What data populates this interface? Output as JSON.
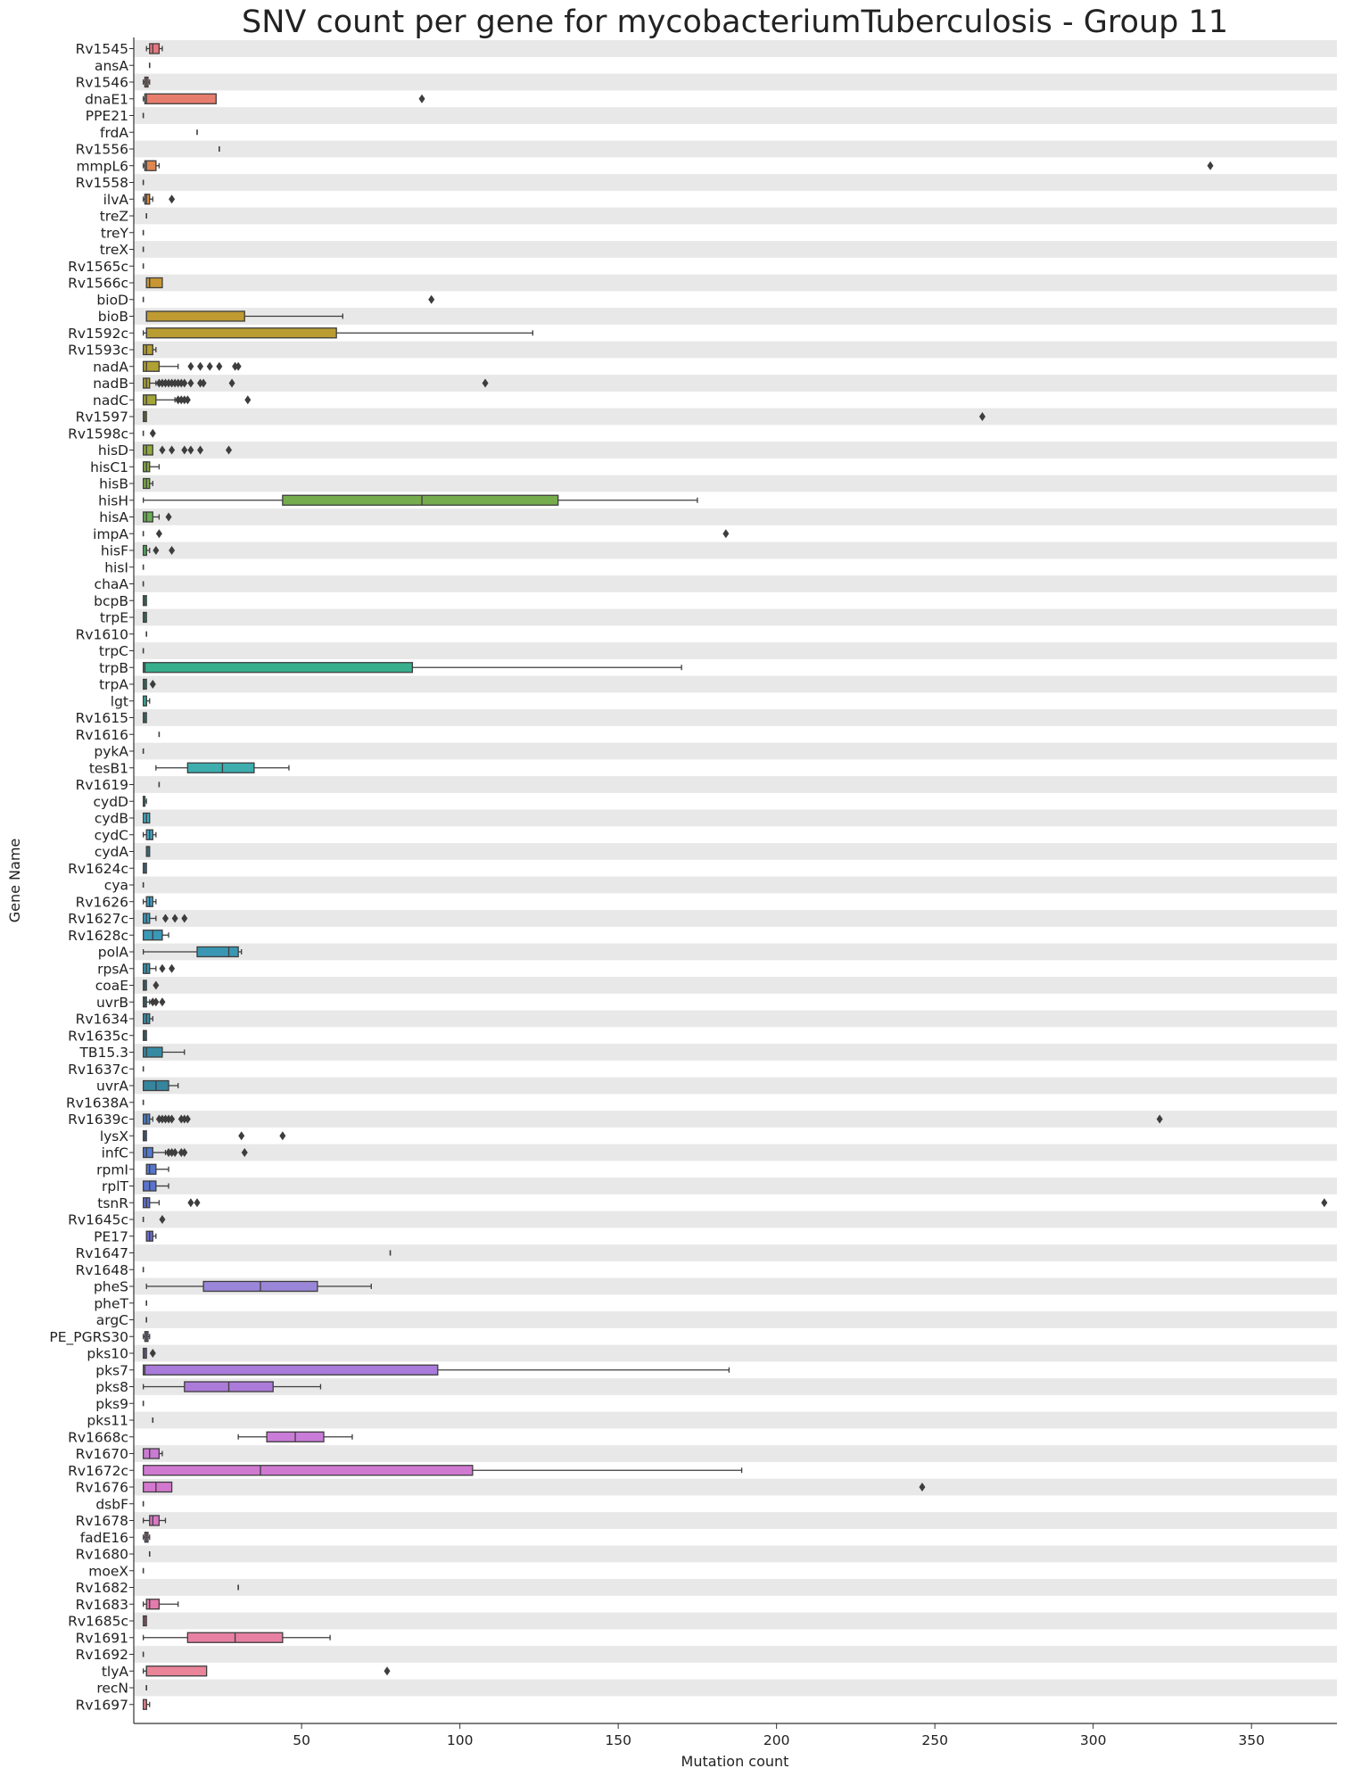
{
  "chart_data": {
    "type": "boxplot",
    "orientation": "horizontal",
    "title": "SNV count per gene for mycobacteriumTuberculosis - Group 11",
    "xlabel": "Mutation count",
    "ylabel": "Gene Name",
    "xlim": [
      -3,
      377
    ],
    "xticks": [
      50,
      100,
      150,
      200,
      250,
      300,
      350
    ],
    "grid": "alternating-row-bands",
    "band_color": "#e8e8e8",
    "box_stroke": "#3d3d3d",
    "categories": [
      "Rv1545",
      "ansA",
      "Rv1546",
      "dnaE1",
      "PPE21",
      "frdA",
      "Rv1556",
      "mmpL6",
      "Rv1558",
      "ilvA",
      "treZ",
      "treY",
      "treX",
      "Rv1565c",
      "Rv1566c",
      "bioD",
      "bioB",
      "Rv1592c",
      "Rv1593c",
      "nadA",
      "nadB",
      "nadC",
      "Rv1597",
      "Rv1598c",
      "hisD",
      "hisC1",
      "hisB",
      "hisH",
      "hisA",
      "impA",
      "hisF",
      "hisI",
      "chaA",
      "bcpB",
      "trpE",
      "Rv1610",
      "trpC",
      "trpB",
      "trpA",
      "lgt",
      "Rv1615",
      "Rv1616",
      "pykA",
      "tesB1",
      "Rv1619",
      "cydD",
      "cydB",
      "cydC",
      "cydA",
      "Rv1624c",
      "cya",
      "Rv1626",
      "Rv1627c",
      "Rv1628c",
      "polA",
      "rpsA",
      "coaE",
      "uvrB",
      "Rv1634",
      "Rv1635c",
      "TB15.3",
      "Rv1637c",
      "uvrA",
      "Rv1638A",
      "Rv1639c",
      "lysX",
      "infC",
      "rpmI",
      "rplT",
      "tsnR",
      "Rv1645c",
      "PE17",
      "Rv1647",
      "Rv1648",
      "pheS",
      "pheT",
      "argC",
      "PE_PGRS30",
      "pks10",
      "pks7",
      "pks8",
      "pks9",
      "pks11",
      "Rv1668c",
      "Rv1670",
      "Rv1672c",
      "Rv1676",
      "dsbF",
      "Rv1678",
      "fadE16",
      "Rv1680",
      "moeX",
      "Rv1682",
      "Rv1683",
      "Rv1685c",
      "Rv1691",
      "Rv1692",
      "tlyA",
      "recN",
      "Rv1697"
    ],
    "boxes": [
      {
        "min": 1,
        "q1": 2,
        "median": 3,
        "q3": 5,
        "max": 6,
        "outliers": [],
        "color": "#e8787f"
      },
      {
        "min": 2,
        "q1": 2,
        "median": 2,
        "q3": 2,
        "max": 2,
        "outliers": [],
        "color": "#e8797a"
      },
      {
        "min": 0,
        "q1": 0.5,
        "median": 1,
        "q3": 1.5,
        "max": 2,
        "outliers": [],
        "color": "#e87b73"
      },
      {
        "min": 0,
        "q1": 0.5,
        "median": 1,
        "q3": 23,
        "max": 23,
        "outliers": [
          88
        ],
        "color": "#e77d6c"
      },
      {
        "min": 0,
        "q1": 0,
        "median": 0,
        "q3": 0,
        "max": 0,
        "outliers": [],
        "color": "#e67f66"
      },
      {
        "min": 17,
        "q1": 17,
        "median": 17,
        "q3": 17,
        "max": 17,
        "outliers": [],
        "color": "#e4815f"
      },
      {
        "min": 24,
        "q1": 24,
        "median": 24,
        "q3": 24,
        "max": 24,
        "outliers": [],
        "color": "#e28458"
      },
      {
        "min": 0,
        "q1": 0.5,
        "median": 1,
        "q3": 4,
        "max": 5,
        "outliers": [
          337
        ],
        "color": "#df8651"
      },
      {
        "min": 0,
        "q1": 0,
        "median": 0,
        "q3": 0,
        "max": 0,
        "outliers": [],
        "color": "#dc894b"
      },
      {
        "min": 0,
        "q1": 0.5,
        "median": 1,
        "q3": 2,
        "max": 3,
        "outliers": [
          9
        ],
        "color": "#d98c45"
      },
      {
        "min": 1,
        "q1": 1,
        "median": 1,
        "q3": 1,
        "max": 1,
        "outliers": [],
        "color": "#d68e40"
      },
      {
        "min": 0,
        "q1": 0,
        "median": 0,
        "q3": 0,
        "max": 0,
        "outliers": [],
        "color": "#d3913c"
      },
      {
        "min": 0,
        "q1": 0,
        "median": 0,
        "q3": 0,
        "max": 0,
        "outliers": [],
        "color": "#d09339"
      },
      {
        "min": 0,
        "q1": 0,
        "median": 0,
        "q3": 0,
        "max": 0,
        "outliers": [],
        "color": "#cc9536"
      },
      {
        "min": 1,
        "q1": 1,
        "median": 2,
        "q3": 6,
        "max": 6,
        "outliers": [],
        "color": "#c89734"
      },
      {
        "min": 0,
        "q1": 0,
        "median": 0,
        "q3": 0,
        "max": 0,
        "outliers": [
          91
        ],
        "color": "#c49933"
      },
      {
        "min": 1,
        "q1": 1,
        "median": 1,
        "q3": 32,
        "max": 63,
        "outliers": [],
        "color": "#bf9b32"
      },
      {
        "min": 0,
        "q1": 1,
        "median": 1,
        "q3": 61,
        "max": 123,
        "outliers": [],
        "color": "#ba9d32"
      },
      {
        "min": 0,
        "q1": 0,
        "median": 1,
        "q3": 3,
        "max": 4,
        "outliers": [],
        "color": "#b59f33"
      },
      {
        "min": 0,
        "q1": 0,
        "median": 1,
        "q3": 5,
        "max": 11,
        "outliers": [
          15,
          18,
          21,
          24,
          29,
          30
        ],
        "color": "#b0a134"
      },
      {
        "min": 0,
        "q1": 0,
        "median": 1,
        "q3": 2,
        "max": 4,
        "outliers": [
          5,
          6,
          7,
          8,
          9,
          10,
          11,
          12,
          13,
          15,
          18,
          19,
          28,
          108
        ],
        "color": "#aaa235"
      },
      {
        "min": 0,
        "q1": 0,
        "median": 1,
        "q3": 4,
        "max": 10,
        "outliers": [
          11,
          12,
          13,
          14,
          33
        ],
        "color": "#a4a437"
      },
      {
        "min": 0,
        "q1": 0,
        "median": 0.5,
        "q3": 1,
        "max": 1,
        "outliers": [
          265
        ],
        "color": "#9ea53a"
      },
      {
        "min": 0,
        "q1": 0,
        "median": 0,
        "q3": 0,
        "max": 0,
        "outliers": [
          3
        ],
        "color": "#97a73d"
      },
      {
        "min": 0,
        "q1": 0,
        "median": 1,
        "q3": 3,
        "max": 3,
        "outliers": [
          6,
          9,
          13,
          15,
          18,
          27
        ],
        "color": "#8fa840"
      },
      {
        "min": 0,
        "q1": 0,
        "median": 1,
        "q3": 2,
        "max": 5,
        "outliers": [],
        "color": "#87a944"
      },
      {
        "min": 0,
        "q1": 0,
        "median": 1,
        "q3": 2,
        "max": 3,
        "outliers": [],
        "color": "#7eab48"
      },
      {
        "min": 0,
        "q1": 44,
        "median": 88,
        "q3": 131,
        "max": 175,
        "outliers": [],
        "color": "#75ac4d"
      },
      {
        "min": 0,
        "q1": 0,
        "median": 1,
        "q3": 3,
        "max": 5,
        "outliers": [
          8
        ],
        "color": "#6aad52"
      },
      {
        "min": 0,
        "q1": 0,
        "median": 0,
        "q3": 0,
        "max": 0,
        "outliers": [
          5,
          184
        ],
        "color": "#5fae58"
      },
      {
        "min": 0,
        "q1": 0,
        "median": 1,
        "q3": 1,
        "max": 2,
        "outliers": [
          4,
          9
        ],
        "color": "#52af5e"
      },
      {
        "min": 0,
        "q1": 0,
        "median": 0,
        "q3": 0,
        "max": 0,
        "outliers": [],
        "color": "#45b064"
      },
      {
        "min": 0,
        "q1": 0,
        "median": 0,
        "q3": 0,
        "max": 0,
        "outliers": [],
        "color": "#3bb06b"
      },
      {
        "min": 0,
        "q1": 0,
        "median": 0.5,
        "q3": 1,
        "max": 1,
        "outliers": [],
        "color": "#36b072"
      },
      {
        "min": 0,
        "q1": 0,
        "median": 0.5,
        "q3": 1,
        "max": 1,
        "outliers": [],
        "color": "#35b079"
      },
      {
        "min": 1,
        "q1": 1,
        "median": 1,
        "q3": 1,
        "max": 1,
        "outliers": [],
        "color": "#35b080"
      },
      {
        "min": 0,
        "q1": 0,
        "median": 0,
        "q3": 0,
        "max": 0,
        "outliers": [],
        "color": "#36af87"
      },
      {
        "min": 0,
        "q1": 0,
        "median": 0.5,
        "q3": 85,
        "max": 170,
        "outliers": [],
        "color": "#37af8d"
      },
      {
        "min": 0,
        "q1": 0,
        "median": 0.5,
        "q3": 1,
        "max": 1,
        "outliers": [
          3
        ],
        "color": "#38af93"
      },
      {
        "min": 0,
        "q1": 0,
        "median": 1,
        "q3": 1,
        "max": 2,
        "outliers": [],
        "color": "#39ae99"
      },
      {
        "min": 0,
        "q1": 0,
        "median": 0.5,
        "q3": 1,
        "max": 1,
        "outliers": [],
        "color": "#3aae9e"
      },
      {
        "min": 5,
        "q1": 5,
        "median": 5,
        "q3": 5,
        "max": 5,
        "outliers": [],
        "color": "#3baea3"
      },
      {
        "min": 0,
        "q1": 0,
        "median": 0,
        "q3": 0,
        "max": 0,
        "outliers": [],
        "color": "#3cada8"
      },
      {
        "min": 4,
        "q1": 14,
        "median": 25,
        "q3": 35,
        "max": 46,
        "outliers": [],
        "color": "#3dadae"
      },
      {
        "min": 5,
        "q1": 5,
        "median": 5,
        "q3": 5,
        "max": 5,
        "outliers": [],
        "color": "#3eacb3"
      },
      {
        "min": 0,
        "q1": 0,
        "median": 0.5,
        "q3": 0.5,
        "max": 1,
        "outliers": [],
        "color": "#3fabb9"
      },
      {
        "min": 0,
        "q1": 0,
        "median": 1,
        "q3": 2,
        "max": 2,
        "outliers": [],
        "color": "#41aabf"
      },
      {
        "min": 0,
        "q1": 1,
        "median": 2,
        "q3": 3,
        "max": 4,
        "outliers": [],
        "color": "#42a9c5"
      },
      {
        "min": 1,
        "q1": 1,
        "median": 1.5,
        "q3": 2,
        "max": 2,
        "outliers": [],
        "color": "#44a8cc"
      },
      {
        "min": 0,
        "q1": 0,
        "median": 0.5,
        "q3": 1,
        "max": 1,
        "outliers": [],
        "color": "#46a6d2"
      },
      {
        "min": 0,
        "q1": 0,
        "median": 0,
        "q3": 0,
        "max": 0,
        "outliers": [],
        "color": "#49a4d9"
      },
      {
        "min": 0,
        "q1": 1,
        "median": 2,
        "q3": 3,
        "max": 4,
        "outliers": [],
        "color": "#3f9fc4"
      },
      {
        "min": 0,
        "q1": 0,
        "median": 1,
        "q3": 2,
        "max": 4,
        "outliers": [
          7,
          10,
          13
        ],
        "color": "#3d9cbe"
      },
      {
        "min": 0,
        "q1": 0,
        "median": 3,
        "q3": 6,
        "max": 8,
        "outliers": [],
        "color": "#3b99b8"
      },
      {
        "min": 0,
        "q1": 17,
        "median": 27,
        "q3": 30,
        "max": 31,
        "outliers": [],
        "color": "#3a97b3"
      },
      {
        "min": 0,
        "q1": 0,
        "median": 1,
        "q3": 2,
        "max": 4,
        "outliers": [
          6,
          9
        ],
        "color": "#3995b0"
      },
      {
        "min": 0,
        "q1": 0,
        "median": 0.5,
        "q3": 1,
        "max": 1,
        "outliers": [
          4
        ],
        "color": "#3894ad"
      },
      {
        "min": 0,
        "q1": 0,
        "median": 0.5,
        "q3": 1,
        "max": 2,
        "outliers": [
          3,
          4,
          6
        ],
        "color": "#3792ab"
      },
      {
        "min": 0,
        "q1": 0,
        "median": 1,
        "q3": 2,
        "max": 3,
        "outliers": [],
        "color": "#3790a9"
      },
      {
        "min": 0,
        "q1": 0,
        "median": 0.5,
        "q3": 1,
        "max": 1,
        "outliers": [],
        "color": "#378ea6"
      },
      {
        "min": 0,
        "q1": 0,
        "median": 1,
        "q3": 6,
        "max": 13,
        "outliers": [],
        "color": "#368ba3"
      },
      {
        "min": 0,
        "q1": 0,
        "median": 0,
        "q3": 0,
        "max": 0,
        "outliers": [],
        "color": "#3688a0"
      },
      {
        "min": 0,
        "q1": 0,
        "median": 4,
        "q3": 8,
        "max": 11,
        "outliers": [],
        "color": "#36859e"
      },
      {
        "min": 0,
        "q1": 0,
        "median": 0,
        "q3": 0,
        "max": 0,
        "outliers": [],
        "color": "#4682c7"
      },
      {
        "min": 0,
        "q1": 0,
        "median": 1,
        "q3": 2,
        "max": 3,
        "outliers": [
          5,
          6,
          7,
          8,
          9,
          12,
          13,
          14,
          321
        ],
        "color": "#4a7fc9"
      },
      {
        "min": 0,
        "q1": 0,
        "median": 0.5,
        "q3": 1,
        "max": 1,
        "outliers": [
          31,
          44
        ],
        "color": "#4e7cca"
      },
      {
        "min": 0,
        "q1": 0,
        "median": 1,
        "q3": 3,
        "max": 7,
        "outliers": [
          8,
          9,
          10,
          12,
          13,
          32
        ],
        "color": "#5279cc"
      },
      {
        "min": 1,
        "q1": 1,
        "median": 2,
        "q3": 4,
        "max": 8,
        "outliers": [],
        "color": "#5676cd"
      },
      {
        "min": 0,
        "q1": 0,
        "median": 2,
        "q3": 4,
        "max": 8,
        "outliers": [],
        "color": "#5a73ce"
      },
      {
        "min": 0,
        "q1": 0,
        "median": 1,
        "q3": 2,
        "max": 5,
        "outliers": [
          15,
          17,
          373
        ],
        "color": "#6071cf"
      },
      {
        "min": 0,
        "q1": 0,
        "median": 0,
        "q3": 0,
        "max": 0,
        "outliers": [
          6
        ],
        "color": "#666fd0"
      },
      {
        "min": 1,
        "q1": 1,
        "median": 2,
        "q3": 3,
        "max": 4,
        "outliers": [],
        "color": "#6d6dd1"
      },
      {
        "min": 78,
        "q1": 78,
        "median": 78,
        "q3": 78,
        "max": 78,
        "outliers": [],
        "color": "#7a6fd2"
      },
      {
        "min": 0,
        "q1": 0,
        "median": 0,
        "q3": 0,
        "max": 0,
        "outliers": [],
        "color": "#8671d3"
      },
      {
        "min": 1,
        "q1": 19,
        "median": 37,
        "q3": 55,
        "max": 72,
        "outliers": [],
        "color": "#9a86d8"
      },
      {
        "min": 1,
        "q1": 1,
        "median": 1,
        "q3": 1,
        "max": 1,
        "outliers": [],
        "color": "#9b82d9"
      },
      {
        "min": 1,
        "q1": 1,
        "median": 1,
        "q3": 1,
        "max": 1,
        "outliers": [],
        "color": "#9c80d9"
      },
      {
        "min": 0,
        "q1": 0.5,
        "median": 1,
        "q3": 1.5,
        "max": 2,
        "outliers": [],
        "color": "#a07ed9"
      },
      {
        "min": 0,
        "q1": 0,
        "median": 0.5,
        "q3": 1,
        "max": 1,
        "outliers": [
          3
        ],
        "color": "#a47cda"
      },
      {
        "min": 0,
        "q1": 0,
        "median": 0.5,
        "q3": 93,
        "max": 185,
        "outliers": [],
        "color": "#a87ada"
      },
      {
        "min": 0,
        "q1": 13,
        "median": 27,
        "q3": 41,
        "max": 56,
        "outliers": [],
        "color": "#ac7ad9"
      },
      {
        "min": 0,
        "q1": 0,
        "median": 0,
        "q3": 0,
        "max": 0,
        "outliers": [],
        "color": "#b07ad8"
      },
      {
        "min": 3,
        "q1": 3,
        "median": 3,
        "q3": 3,
        "max": 3,
        "outliers": [],
        "color": "#b57ad6"
      },
      {
        "min": 30,
        "q1": 39,
        "median": 48,
        "q3": 57,
        "max": 66,
        "outliers": [],
        "color": "#c97cd7"
      },
      {
        "min": 0,
        "q1": 0,
        "median": 2,
        "q3": 5,
        "max": 6,
        "outliers": [],
        "color": "#cb7bd4"
      },
      {
        "min": 0,
        "q1": 0,
        "median": 37,
        "q3": 104,
        "max": 189,
        "outliers": [],
        "color": "#d079d1"
      },
      {
        "min": 0,
        "q1": 0,
        "median": 4,
        "q3": 9,
        "max": 9,
        "outliers": [
          246
        ],
        "color": "#d378ce"
      },
      {
        "min": 0,
        "q1": 0,
        "median": 0,
        "q3": 0,
        "max": 0,
        "outliers": [],
        "color": "#d777cb"
      },
      {
        "min": 0,
        "q1": 2,
        "median": 3,
        "q3": 5,
        "max": 7,
        "outliers": [],
        "color": "#da77c7"
      },
      {
        "min": 0,
        "q1": 0.5,
        "median": 1,
        "q3": 1.5,
        "max": 2,
        "outliers": [],
        "color": "#dc77c2"
      },
      {
        "min": 2,
        "q1": 2,
        "median": 2,
        "q3": 2,
        "max": 2,
        "outliers": [],
        "color": "#df78bd"
      },
      {
        "min": 0,
        "q1": 0,
        "median": 0,
        "q3": 0,
        "max": 0,
        "outliers": [],
        "color": "#e179b8"
      },
      {
        "min": 30,
        "q1": 30,
        "median": 30,
        "q3": 30,
        "max": 30,
        "outliers": [],
        "color": "#e37bb2"
      },
      {
        "min": 0,
        "q1": 1,
        "median": 2,
        "q3": 5,
        "max": 11,
        "outliers": [],
        "color": "#e47cad"
      },
      {
        "min": 0,
        "q1": 0,
        "median": 0.5,
        "q3": 1,
        "max": 1,
        "outliers": [],
        "color": "#e67ea8"
      },
      {
        "min": 0,
        "q1": 14,
        "median": 29,
        "q3": 44,
        "max": 59,
        "outliers": [],
        "color": "#e780a3"
      },
      {
        "min": 0,
        "q1": 0,
        "median": 0,
        "q3": 0,
        "max": 0,
        "outliers": [],
        "color": "#e8829e"
      },
      {
        "min": 0,
        "q1": 1,
        "median": 1,
        "q3": 20,
        "max": 20,
        "outliers": [
          77
        ],
        "color": "#e98499"
      },
      {
        "min": 1,
        "q1": 1,
        "median": 1,
        "q3": 1,
        "max": 1,
        "outliers": [],
        "color": "#ea8594"
      },
      {
        "min": 0,
        "q1": 0,
        "median": 1,
        "q3": 1,
        "max": 2,
        "outliers": [],
        "color": "#ea878f"
      }
    ]
  }
}
